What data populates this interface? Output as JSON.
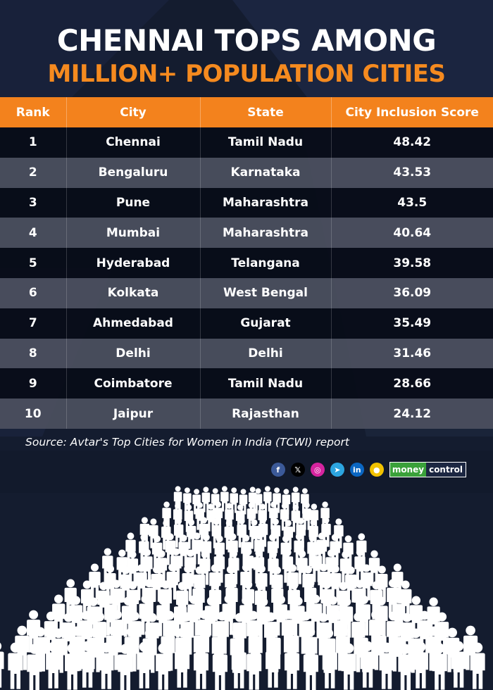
{
  "title": {
    "line1": "CHENNAI TOPS AMONG",
    "line2": "MILLION+ POPULATION CITIES"
  },
  "table": {
    "headers": [
      "Rank",
      "City",
      "State",
      "City Inclusion Score"
    ],
    "rows": [
      {
        "rank": "1",
        "city": "Chennai",
        "state": "Tamil Nadu",
        "score": "48.42"
      },
      {
        "rank": "2",
        "city": "Bengaluru",
        "state": "Karnataka",
        "score": "43.53"
      },
      {
        "rank": "3",
        "city": "Pune",
        "state": "Maharashtra",
        "score": "43.5"
      },
      {
        "rank": "4",
        "city": "Mumbai",
        "state": "Maharashtra",
        "score": "40.64"
      },
      {
        "rank": "5",
        "city": "Hyderabad",
        "state": "Telangana",
        "score": "39.58"
      },
      {
        "rank": "6",
        "city": "Kolkata",
        "state": "West Bengal",
        "score": "36.09"
      },
      {
        "rank": "7",
        "city": "Ahmedabad",
        "state": "Gujarat",
        "score": "35.49"
      },
      {
        "rank": "8",
        "city": "Delhi",
        "state": "Delhi",
        "score": "31.46"
      },
      {
        "rank": "9",
        "city": "Coimbatore",
        "state": "Tamil Nadu",
        "score": "28.66"
      },
      {
        "rank": "10",
        "city": "Jaipur",
        "state": "Rajasthan",
        "score": "24.12"
      }
    ]
  },
  "source": "Source: Avtar's Top Cities for Women in India (TCWI) report",
  "social_icons": [
    {
      "icon": "facebook-icon",
      "glyph": "f",
      "color": "#3b5998"
    },
    {
      "icon": "x-icon",
      "glyph": "𝕏",
      "color": "#000000"
    },
    {
      "icon": "instagram-icon",
      "glyph": "◎",
      "color": "#d6249f"
    },
    {
      "icon": "telegram-icon",
      "glyph": "➤",
      "color": "#2ca5e0"
    },
    {
      "icon": "linkedin-icon",
      "glyph": "in",
      "color": "#0a66c2"
    },
    {
      "icon": "koo-icon",
      "glyph": "●",
      "color": "#f2c200"
    }
  ],
  "brand": {
    "part1": "money",
    "part2": "control"
  },
  "colors": {
    "accent": "#f3821d",
    "background": "#141c2f",
    "row_dark": "#080c18",
    "row_light": "#4c5060"
  },
  "chart_data": {
    "type": "table",
    "title": "CHENNAI TOPS AMONG MILLION+ POPULATION CITIES",
    "columns": [
      "Rank",
      "City",
      "State",
      "City Inclusion Score"
    ],
    "rows": [
      [
        1,
        "Chennai",
        "Tamil Nadu",
        48.42
      ],
      [
        2,
        "Bengaluru",
        "Karnataka",
        43.53
      ],
      [
        3,
        "Pune",
        "Maharashtra",
        43.5
      ],
      [
        4,
        "Mumbai",
        "Maharashtra",
        40.64
      ],
      [
        5,
        "Hyderabad",
        "Telangana",
        39.58
      ],
      [
        6,
        "Kolkata",
        "West Bengal",
        36.09
      ],
      [
        7,
        "Ahmedabad",
        "Gujarat",
        35.49
      ],
      [
        8,
        "Delhi",
        "Delhi",
        31.46
      ],
      [
        9,
        "Coimbatore",
        "Tamil Nadu",
        28.66
      ],
      [
        10,
        "Jaipur",
        "Rajasthan",
        24.12
      ]
    ]
  }
}
